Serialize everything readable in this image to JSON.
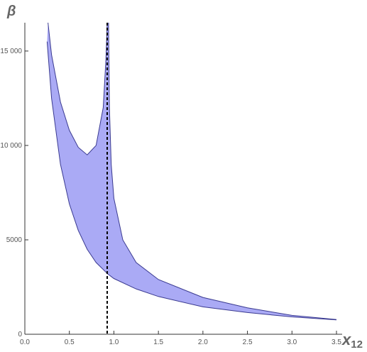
{
  "chart_data": {
    "type": "region",
    "y_label": "β",
    "x_label": "x",
    "x_label_subscript": "12",
    "xlim": [
      0,
      3.5
    ],
    "ylim": [
      0,
      16500
    ],
    "xticks": [
      {
        "value": 0,
        "label": "0.0"
      },
      0.5,
      {
        "value": 1,
        "label": "1.0"
      },
      1.5,
      {
        "value": 2,
        "label": "2.0"
      },
      2.5,
      {
        "value": 3,
        "label": "3.0"
      },
      3.5
    ],
    "yticks": [
      0,
      5000,
      {
        "value": 10000,
        "label": "10 000"
      },
      {
        "value": 15000,
        "label": "15 000"
      }
    ],
    "fill_color": "#aaaaf5",
    "line_color": "#3a3a90",
    "reference_x": 0.925,
    "upper_left": {
      "x": [
        0.26,
        0.3,
        0.4,
        0.5,
        0.6,
        0.7,
        0.8,
        0.88,
        0.91,
        0.925
      ],
      "values": [
        16500,
        14800,
        12300,
        10800,
        9900,
        9500,
        10000,
        12000,
        14500,
        16500
      ]
    },
    "upper_right": {
      "x": [
        0.94,
        0.95,
        0.97,
        1.0,
        1.1,
        1.25,
        1.5,
        2.0,
        2.5,
        3.0,
        3.5
      ],
      "values": [
        16500,
        12000,
        9000,
        7200,
        5000,
        3800,
        2900,
        1950,
        1400,
        1000,
        780
      ]
    },
    "lower": {
      "x": [
        0.25,
        0.3,
        0.4,
        0.5,
        0.6,
        0.7,
        0.8,
        0.93,
        1.0,
        1.25,
        1.5,
        2.0,
        2.5,
        3.0,
        3.5
      ],
      "values": [
        15500,
        12500,
        9000,
        6900,
        5500,
        4500,
        3800,
        3200,
        2950,
        2400,
        2000,
        1450,
        1150,
        920,
        760
      ]
    }
  }
}
